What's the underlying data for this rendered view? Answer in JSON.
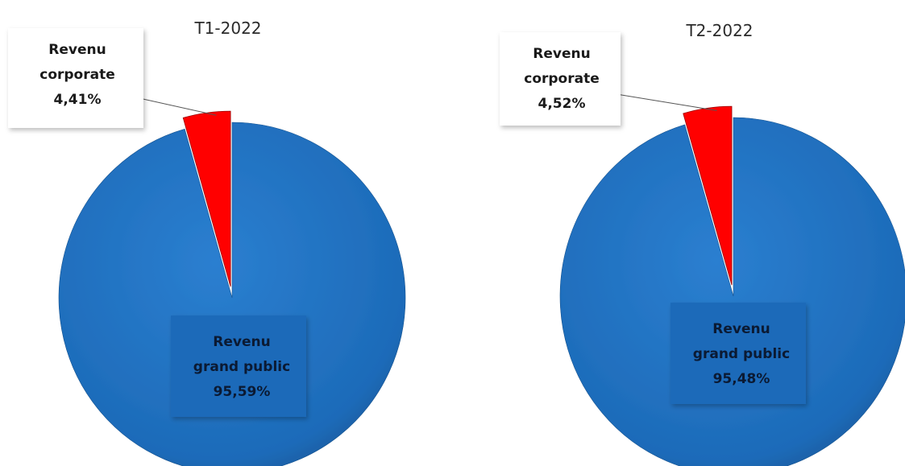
{
  "chart_data": [
    {
      "type": "pie",
      "title": "T1-2022",
      "slices": [
        {
          "label": [
            "Revenu",
            "corporate"
          ],
          "value": 4.41,
          "value_text": "4,41%",
          "color": "#ff0000"
        },
        {
          "label": [
            "Revenu",
            "grand public"
          ],
          "value": 95.59,
          "value_text": "95,59%",
          "color": "#1f6fbf"
        }
      ]
    },
    {
      "type": "pie",
      "title": "T2-2022",
      "slices": [
        {
          "label": [
            "Revenu",
            "corporate"
          ],
          "value": 4.52,
          "value_text": "4,52%",
          "color": "#ff0000"
        },
        {
          "label": [
            "Revenu",
            "grand public"
          ],
          "value": 95.48,
          "value_text": "95,48%",
          "color": "#1f6fbf"
        }
      ]
    }
  ]
}
